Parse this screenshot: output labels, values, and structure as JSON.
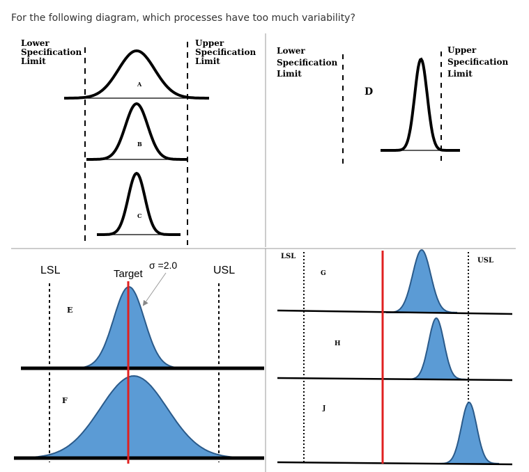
{
  "question": "For the following diagram, which processes have too much variability?",
  "panel_tl": {
    "lower_spec": [
      "Lower",
      "Specification",
      "Limit"
    ],
    "upper_spec": [
      "Upper",
      "Specification",
      "Limit"
    ],
    "curves": [
      "A",
      "B",
      "C"
    ]
  },
  "panel_tr": {
    "lower_spec": [
      "Lower",
      "Specification",
      "Limit"
    ],
    "upper_spec": [
      "Upper",
      "Specification",
      "Limit"
    ],
    "curve": "D"
  },
  "panel_bl": {
    "lsl": "LSL",
    "usl": "USL",
    "target": "Target",
    "sigma": "σ =2.0",
    "curves": [
      "E",
      "F"
    ],
    "fill_color": "#5b9bd5",
    "target_color": "#e02020"
  },
  "panel_br": {
    "lsl": "LSL",
    "usl": "USL",
    "curves": [
      "G",
      "H",
      "J"
    ]
  }
}
